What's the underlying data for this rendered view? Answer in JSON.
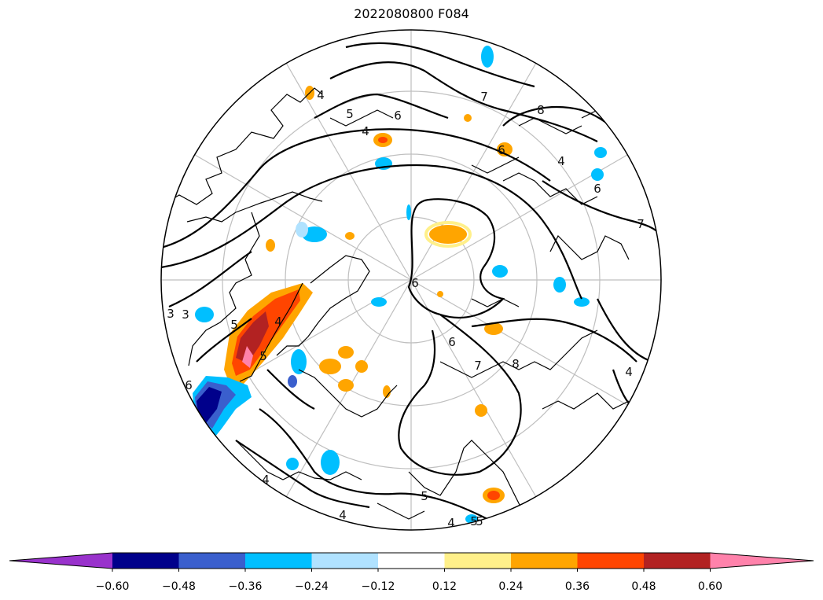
{
  "title": "2022080800 F084",
  "colorbar": {
    "colors": [
      "#9932cc",
      "#00008b",
      "#3a5fcd",
      "#00bfff",
      "#b0e2ff",
      "#ffffff",
      "#fff08a",
      "#ffa500",
      "#ff4500",
      "#b22222",
      "#ff82ab"
    ],
    "ticks": [
      "−0.60",
      "−0.48",
      "−0.36",
      "−0.24",
      "−0.12",
      "0.12",
      "0.24",
      "0.36",
      "0.48",
      "0.60"
    ]
  },
  "contour_labels": [
    "4",
    "5",
    "6",
    "7",
    "8",
    "3",
    "4",
    "6",
    "4",
    "5",
    "6",
    "7",
    "8",
    "4",
    "4",
    "4",
    "5",
    "6",
    "7",
    "4",
    "6",
    "5",
    "5",
    "6",
    "3",
    "5",
    "4"
  ],
  "colors": {
    "coastline": "#000000",
    "contour": "#000000",
    "graticule": "#bfbfbf"
  }
}
